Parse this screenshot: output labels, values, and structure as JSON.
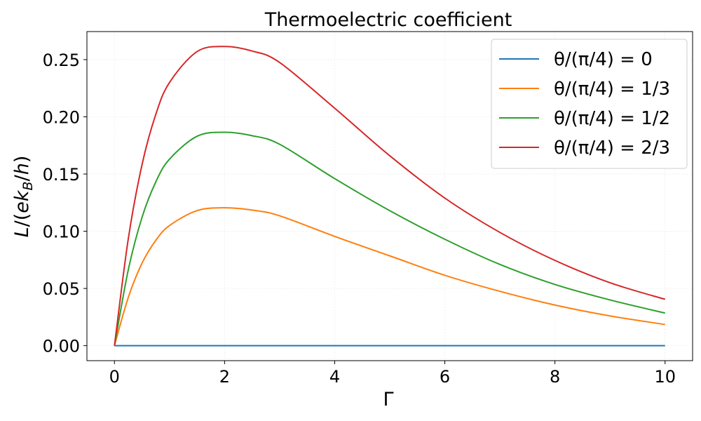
{
  "chart_data": {
    "type": "line",
    "title": "Thermoelectric coefficient",
    "xlabel": "Γ",
    "ylabel": "L/(ek_B/h)",
    "xlim": [
      -0.5,
      10.5
    ],
    "ylim": [
      -0.0131,
      0.2745
    ],
    "x_ticks": [
      0,
      2,
      4,
      6,
      8,
      10
    ],
    "x_tick_labels": [
      "0",
      "2",
      "4",
      "6",
      "8",
      "10"
    ],
    "y_ticks": [
      0.0,
      0.05,
      0.1,
      0.15,
      0.2,
      0.25
    ],
    "y_tick_labels": [
      "0.00",
      "0.05",
      "0.10",
      "0.15",
      "0.20",
      "0.25"
    ],
    "grid": true,
    "legend_position": "top-right",
    "x": [
      0,
      0.25,
      0.5,
      0.75,
      1.0,
      1.5,
      2.0,
      2.5,
      3.0,
      4.0,
      5.0,
      6.0,
      7.0,
      8.0,
      9.0,
      10.0
    ],
    "series": [
      {
        "name": "θ/(π/4) = 0",
        "color": "#1f77b4",
        "values": [
          0,
          0,
          0,
          0,
          0,
          0,
          0,
          0,
          0,
          0,
          0,
          0,
          0,
          0,
          0,
          0
        ]
      },
      {
        "name": "θ/(π/4) = 1/3",
        "color": "#ff7f0e",
        "values": [
          0,
          0.042,
          0.072,
          0.092,
          0.105,
          0.118,
          0.1205,
          0.1185,
          0.1135,
          0.0955,
          0.0785,
          0.0615,
          0.0475,
          0.0355,
          0.026,
          0.0185
        ]
      },
      {
        "name": "θ/(π/4) = 1/2",
        "color": "#2ca02c",
        "values": [
          0,
          0.066,
          0.112,
          0.143,
          0.163,
          0.183,
          0.1865,
          0.1835,
          0.176,
          0.146,
          0.118,
          0.093,
          0.071,
          0.0535,
          0.04,
          0.0285
        ]
      },
      {
        "name": "θ/(π/4) = 2/3",
        "color": "#d62728",
        "values": [
          0,
          0.093,
          0.158,
          0.202,
          0.23,
          0.257,
          0.2615,
          0.2575,
          0.2475,
          0.2075,
          0.166,
          0.129,
          0.099,
          0.0745,
          0.055,
          0.0405
        ]
      }
    ]
  }
}
